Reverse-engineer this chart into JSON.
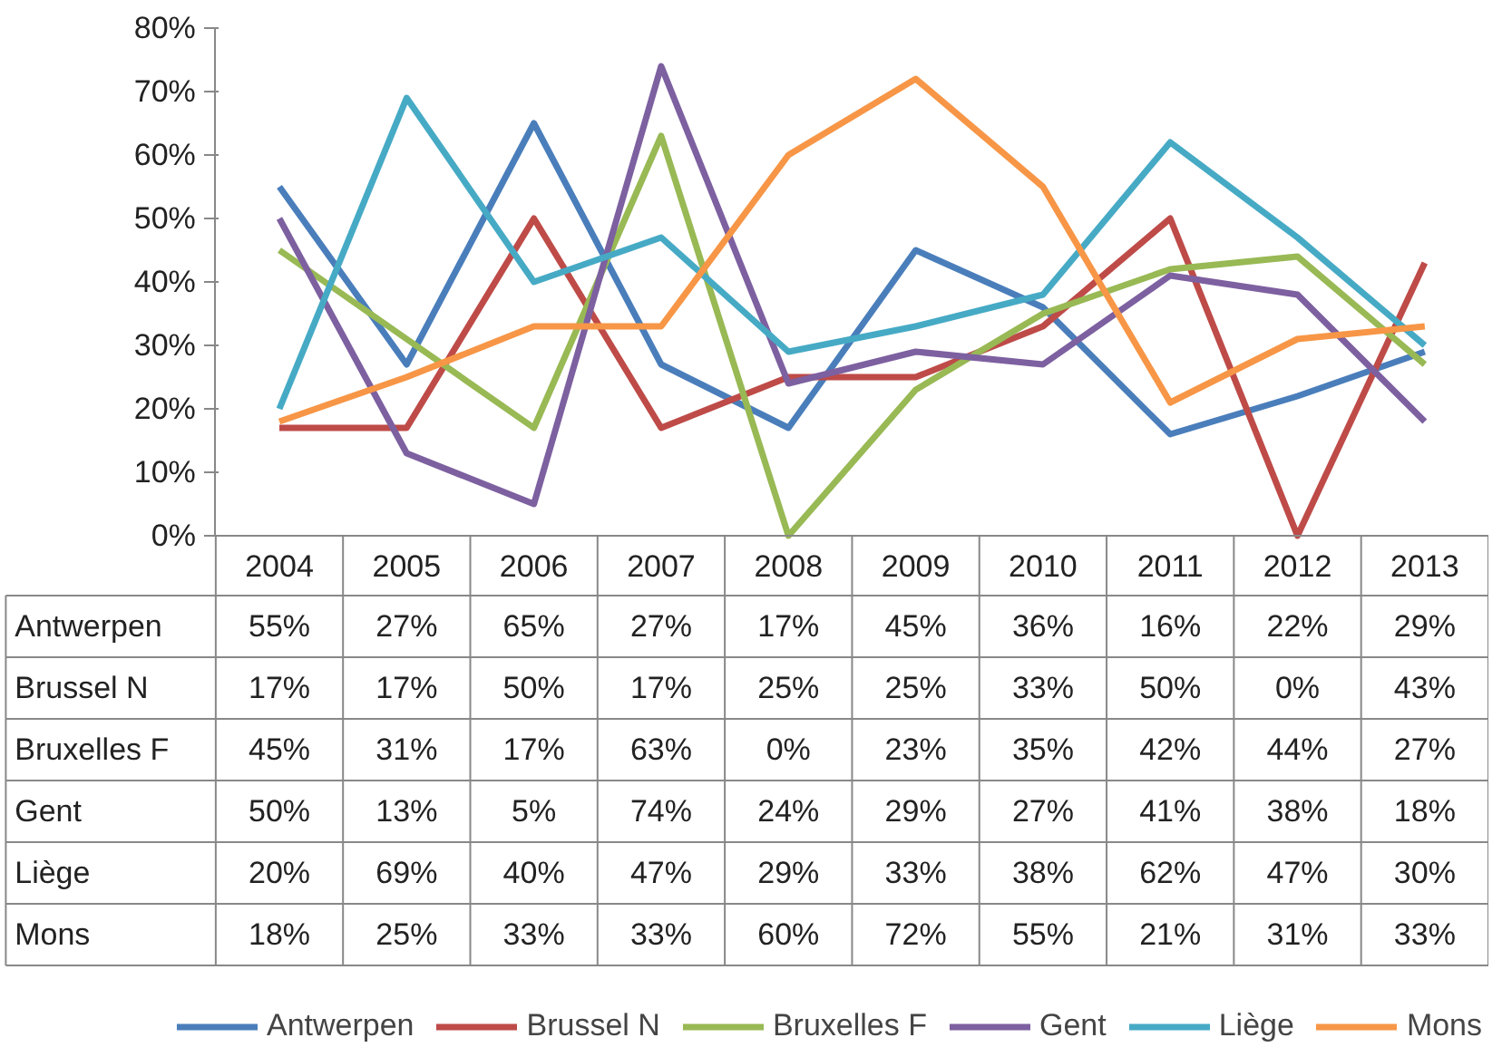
{
  "chart_data": {
    "type": "line",
    "categories": [
      "2004",
      "2005",
      "2006",
      "2007",
      "2008",
      "2009",
      "2010",
      "2011",
      "2012",
      "2013"
    ],
    "ylim": [
      0,
      80
    ],
    "yticks": [
      {
        "value": 0,
        "label": "0%"
      },
      {
        "value": 10,
        "label": "10%"
      },
      {
        "value": 20,
        "label": "20%"
      },
      {
        "value": 30,
        "label": "30%"
      },
      {
        "value": 40,
        "label": "40%"
      },
      {
        "value": 50,
        "label": "50%"
      },
      {
        "value": 60,
        "label": "60%"
      },
      {
        "value": 70,
        "label": "70%"
      },
      {
        "value": 80,
        "label": "80%"
      }
    ],
    "grid": false,
    "legend": "bottom",
    "marker": "none",
    "line_style": "solid",
    "series": [
      {
        "name": "Antwerpen",
        "color": "#4a7ebb",
        "values": [
          55,
          27,
          65,
          27,
          17,
          45,
          36,
          16,
          22,
          29
        ],
        "value_labels": [
          "55%",
          "27%",
          "65%",
          "27%",
          "17%",
          "45%",
          "36%",
          "16%",
          "22%",
          "29%"
        ]
      },
      {
        "name": "Brussel N",
        "color": "#be4b48",
        "values": [
          17,
          17,
          50,
          17,
          25,
          25,
          33,
          50,
          0,
          43
        ],
        "value_labels": [
          "17%",
          "17%",
          "50%",
          "17%",
          "25%",
          "25%",
          "33%",
          "50%",
          "0%",
          "43%"
        ]
      },
      {
        "name": "Bruxelles F",
        "color": "#98b954",
        "values": [
          45,
          31,
          17,
          63,
          0,
          23,
          35,
          42,
          44,
          27
        ],
        "value_labels": [
          "45%",
          "31%",
          "17%",
          "63%",
          "0%",
          "23%",
          "35%",
          "42%",
          "44%",
          "27%"
        ]
      },
      {
        "name": "Gent",
        "color": "#7d60a0",
        "values": [
          50,
          13,
          5,
          74,
          24,
          29,
          27,
          41,
          38,
          18
        ],
        "value_labels": [
          "50%",
          "13%",
          "5%",
          "74%",
          "24%",
          "29%",
          "27%",
          "41%",
          "38%",
          "18%"
        ]
      },
      {
        "name": "Liège",
        "color": "#46aac5",
        "values": [
          20,
          69,
          40,
          47,
          29,
          33,
          38,
          62,
          47,
          30
        ],
        "value_labels": [
          "20%",
          "69%",
          "40%",
          "47%",
          "29%",
          "33%",
          "38%",
          "62%",
          "47%",
          "30%"
        ]
      },
      {
        "name": "Mons",
        "color": "#f79646",
        "values": [
          18,
          25,
          33,
          33,
          60,
          72,
          55,
          21,
          31,
          33
        ],
        "value_labels": [
          "18%",
          "25%",
          "33%",
          "33%",
          "60%",
          "72%",
          "55%",
          "21%",
          "31%",
          "33%"
        ]
      }
    ]
  }
}
